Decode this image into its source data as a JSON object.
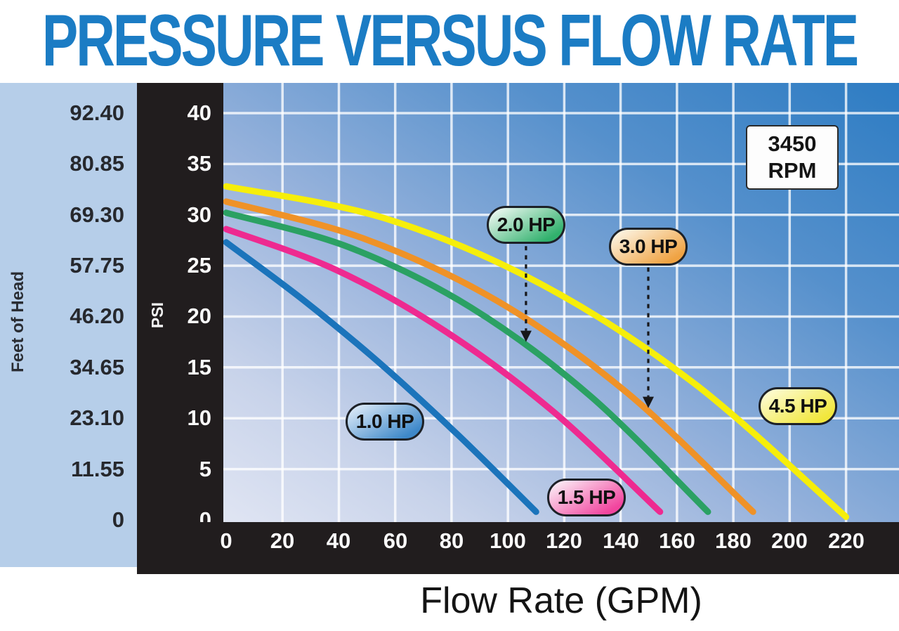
{
  "page_title": "PRESSURE VERSUS FLOW RATE",
  "rpm_badge": {
    "line1": "3450",
    "line2": "RPM"
  },
  "colors": {
    "title_blue": "#1b7cc4",
    "head_panel_bg": "#b6cee9",
    "axis_panel_bg": "#211d1e",
    "grid": "#ffffff",
    "arrow": "#17171a",
    "plot_gradient": [
      "#e0e5f3",
      "#c8d3ea",
      "#98b3dc",
      "#5590cc",
      "#2d7cc3"
    ]
  },
  "chart_data": {
    "type": "line",
    "title": "PRESSURE VERSUS FLOW RATE",
    "xlabel": "Flow Rate (GPM)",
    "x_ticks": [
      0,
      20,
      40,
      60,
      80,
      100,
      120,
      140,
      160,
      180,
      200,
      220
    ],
    "xlim": [
      -1,
      238.8
    ],
    "grid": {
      "x_step_gpm": 20,
      "y_step_psi": 5,
      "on": true
    },
    "psi_axis": {
      "label": "PSI",
      "ticks": [
        40,
        35,
        30,
        25,
        20,
        15,
        10,
        5,
        0
      ],
      "lim": [
        -0.21,
        42.97
      ]
    },
    "head_axis": {
      "label": "Feet of Head",
      "ticks": [
        "92.40",
        "80.85",
        "69.30",
        "57.75",
        "46.20",
        "34.65",
        "23.10",
        "11.55",
        "0"
      ],
      "feet_per_psi": 2.31
    },
    "annotation_rpm": "3450 RPM",
    "legend_position": "on-curve pills",
    "series": [
      {
        "name": "1.0 HP",
        "slug": "1-0-hp",
        "color": "#1b74bb",
        "pill_light": "#d9e8f7",
        "pill_main": "#3e88c9",
        "points_gpm_psi": [
          [
            0,
            27.3
          ],
          [
            27.5,
            21.6
          ],
          [
            55,
            15.3
          ],
          [
            82.5,
            8.3
          ],
          [
            110,
            0.8
          ]
        ],
        "shutoff_psi": 27.3,
        "max_flow_gpm": 110,
        "label_pos": {
          "gpm": 56.3,
          "psi": 9.7
        },
        "arrow_to_psi": null
      },
      {
        "name": "1.5 HP",
        "slug": "1-5-hp",
        "color": "#ee2a90",
        "pill_light": "#fbeaf4",
        "pill_main": "#f2459e",
        "points_gpm_psi": [
          [
            0,
            28.6
          ],
          [
            38.9,
            24.6
          ],
          [
            77.5,
            18.6
          ],
          [
            115.9,
            10.7
          ],
          [
            154,
            0.8
          ]
        ],
        "shutoff_psi": 28.6,
        "max_flow_gpm": 154,
        "label_pos": {
          "gpm": 127.9,
          "psi": 2.2
        },
        "arrow_to_psi": null
      },
      {
        "name": "2.0 HP",
        "slug": "2-0-hp",
        "color": "#2ba163",
        "pill_light": "#eaf7ef",
        "pill_main": "#31b16d",
        "points_gpm_psi": [
          [
            0,
            30.2
          ],
          [
            43.7,
            26.8
          ],
          [
            86.8,
            20.9
          ],
          [
            129.2,
            12.2
          ],
          [
            171,
            0.8
          ]
        ],
        "shutoff_psi": 30.2,
        "max_flow_gpm": 171,
        "label_pos": {
          "gpm": 106.4,
          "psi": 29.0
        },
        "arrow_to_psi": 17.3
      },
      {
        "name": "3.0 HP",
        "slug": "3-0-hp",
        "color": "#ef9227",
        "pill_light": "#fcf3e1",
        "pill_main": "#f0a343",
        "points_gpm_psi": [
          [
            0,
            31.3
          ],
          [
            48.5,
            27.7
          ],
          [
            95.8,
            21.6
          ],
          [
            141.9,
            12.6
          ],
          [
            187,
            0.8
          ]
        ],
        "shutoff_psi": 31.3,
        "max_flow_gpm": 187,
        "label_pos": {
          "gpm": 149.8,
          "psi": 26.9
        },
        "arrow_to_psi": 10.8
      },
      {
        "name": "4.5 HP",
        "slug": "4-5-hp",
        "color": "#f6ee0a",
        "pill_light": "#fdfbd2",
        "pill_main": "#f1e73c",
        "points_gpm_psi": [
          [
            0,
            32.8
          ],
          [
            55.8,
            29.7
          ],
          [
            111,
            23.3
          ],
          [
            165.8,
            13.5
          ],
          [
            220,
            0.3
          ]
        ],
        "shutoff_psi": 32.8,
        "max_flow_gpm": 220,
        "label_pos": {
          "gpm": 203,
          "psi": 11.2
        },
        "arrow_to_psi": null
      }
    ]
  }
}
